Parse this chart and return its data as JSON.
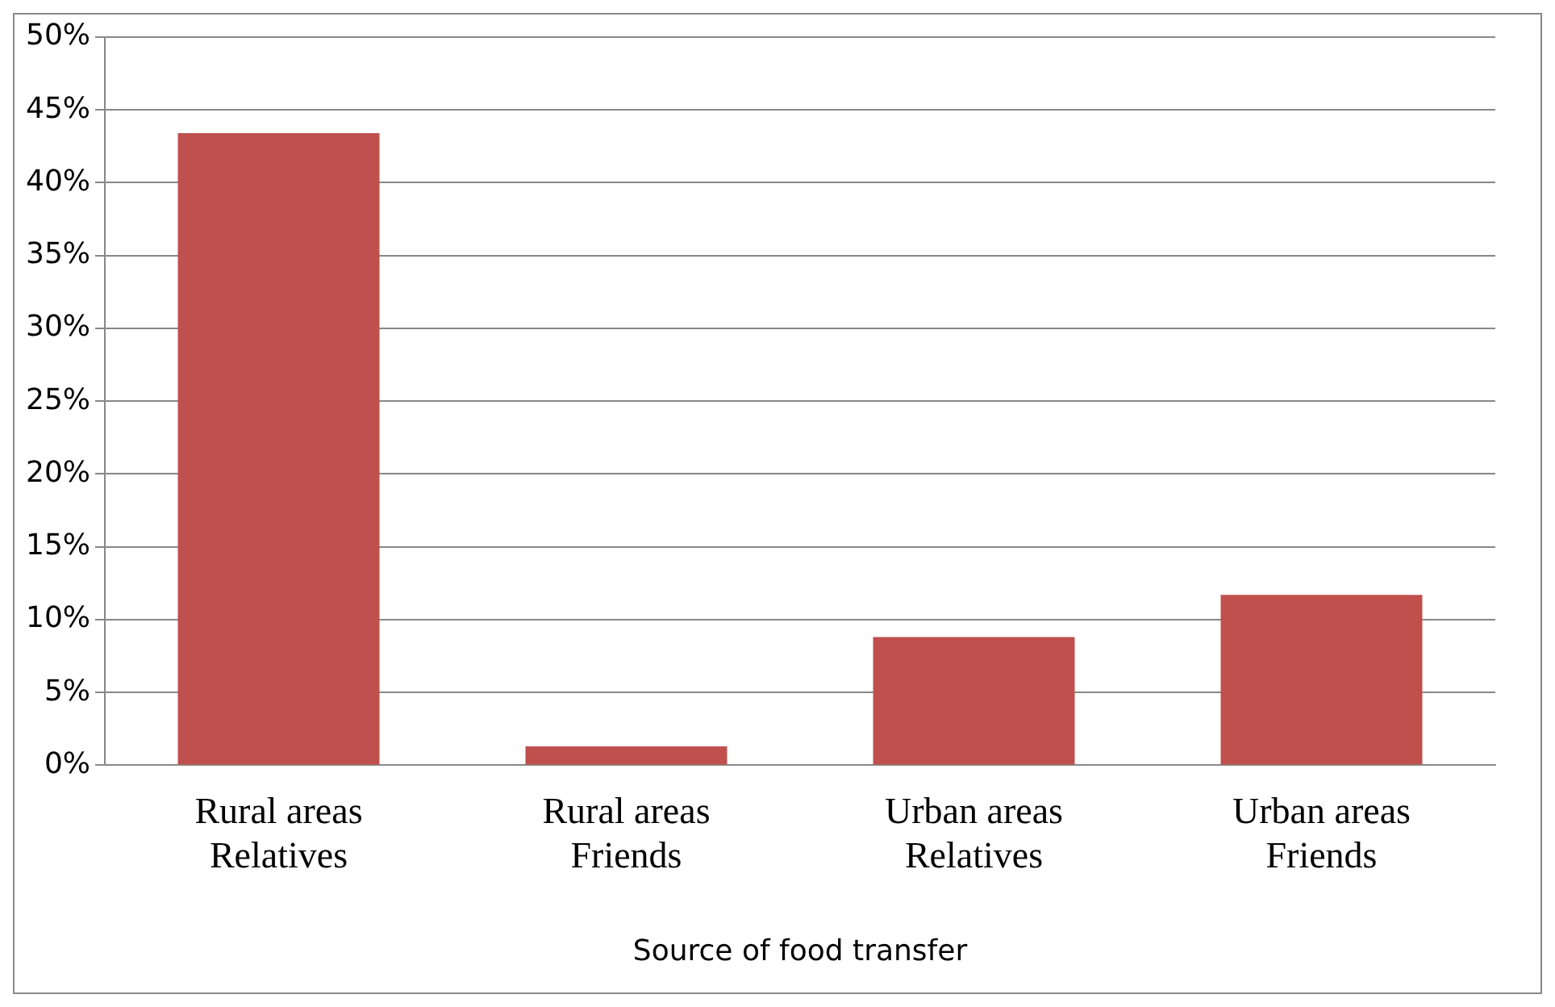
{
  "chart_data": {
    "type": "bar",
    "xlabel": "Source of food transfer",
    "categories": [
      "Rural areas\nRelatives",
      "Rural areas\nFriends",
      "Urban areas\nRelatives",
      "Urban areas\nFriends"
    ],
    "values": [
      43.4,
      1.3,
      8.8,
      11.7
    ],
    "color": "#c0504d",
    "ylim": [
      0,
      50
    ],
    "yticks": [
      {
        "value": 0,
        "label": "0%"
      },
      {
        "value": 5,
        "label": "5%"
      },
      {
        "value": 10,
        "label": "10%"
      },
      {
        "value": 15,
        "label": "15%"
      },
      {
        "value": 20,
        "label": "20%"
      },
      {
        "value": 25,
        "label": "25%"
      },
      {
        "value": 30,
        "label": "30%"
      },
      {
        "value": 35,
        "label": "35%"
      },
      {
        "value": 40,
        "label": "40%"
      },
      {
        "value": 45,
        "label": "45%"
      },
      {
        "value": 50,
        "label": "50%"
      }
    ],
    "grid": "y",
    "legend": false
  }
}
